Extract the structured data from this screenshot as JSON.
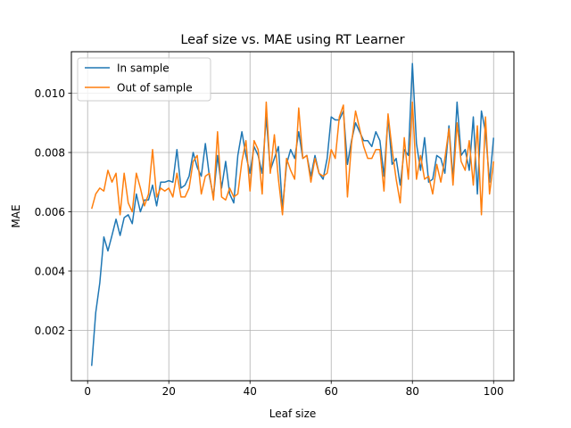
{
  "chart_data": {
    "type": "line",
    "title": "Leaf size vs. MAE using RT Learner",
    "xlabel": "Leaf size",
    "ylabel": "MAE",
    "xlim": [
      -4.0,
      105.0
    ],
    "ylim": [
      0.0003,
      0.0114
    ],
    "xticks": [
      0,
      20,
      40,
      60,
      80,
      100
    ],
    "xtick_labels": [
      "0",
      "20",
      "40",
      "60",
      "80",
      "100"
    ],
    "yticks": [
      0.002,
      0.004,
      0.006,
      0.008,
      0.01
    ],
    "ytick_labels": [
      "0.002",
      "0.004",
      "0.006",
      "0.008",
      "0.010"
    ],
    "grid": true,
    "legend_position": "top-left",
    "x": [
      1,
      2,
      3,
      4,
      5,
      6,
      7,
      8,
      9,
      10,
      11,
      12,
      13,
      14,
      15,
      16,
      17,
      18,
      19,
      20,
      21,
      22,
      23,
      24,
      25,
      26,
      27,
      28,
      29,
      30,
      31,
      32,
      33,
      34,
      35,
      36,
      37,
      38,
      39,
      40,
      41,
      42,
      43,
      44,
      45,
      46,
      47,
      48,
      49,
      50,
      51,
      52,
      53,
      54,
      55,
      56,
      57,
      58,
      59,
      60,
      61,
      62,
      63,
      64,
      65,
      66,
      67,
      68,
      69,
      70,
      71,
      72,
      73,
      74,
      75,
      76,
      77,
      78,
      79,
      80,
      81,
      82,
      83,
      84,
      85,
      86,
      87,
      88,
      89,
      90,
      91,
      92,
      93,
      94,
      95,
      96,
      97,
      98,
      99,
      100
    ],
    "series": [
      {
        "name": "In sample",
        "color": "#1f77b4",
        "values": [
          0.0008,
          0.0026,
          0.0036,
          0.00515,
          0.00468,
          0.0052,
          0.00575,
          0.0052,
          0.0058,
          0.0059,
          0.0056,
          0.0066,
          0.006,
          0.0064,
          0.0064,
          0.0069,
          0.0062,
          0.007,
          0.007,
          0.00705,
          0.007,
          0.0081,
          0.0068,
          0.0069,
          0.0072,
          0.008,
          0.0075,
          0.0072,
          0.0083,
          0.0072,
          0.0065,
          0.0079,
          0.0068,
          0.0077,
          0.0066,
          0.0063,
          0.0079,
          0.0087,
          0.0079,
          0.0073,
          0.0082,
          0.0079,
          0.0073,
          0.0092,
          0.0074,
          0.0078,
          0.0082,
          0.0061,
          0.0076,
          0.0081,
          0.0078,
          0.0087,
          0.0078,
          0.0079,
          0.0072,
          0.0079,
          0.0073,
          0.0071,
          0.0078,
          0.0092,
          0.0091,
          0.0091,
          0.0094,
          0.0076,
          0.0084,
          0.009,
          0.0087,
          0.0084,
          0.0084,
          0.0082,
          0.0087,
          0.0084,
          0.0072,
          0.0092,
          0.0076,
          0.0078,
          0.0069,
          0.0081,
          0.0079,
          0.011,
          0.0083,
          0.0074,
          0.0085,
          0.007,
          0.0071,
          0.0079,
          0.0078,
          0.0073,
          0.0089,
          0.0071,
          0.0097,
          0.0079,
          0.0081,
          0.0074,
          0.0092,
          0.0066,
          0.0094,
          0.0087,
          0.007,
          0.0085
        ]
      },
      {
        "name": "Out of sample",
        "color": "#ff7f0e",
        "values": [
          0.0061,
          0.0066,
          0.0068,
          0.0067,
          0.0074,
          0.007,
          0.0073,
          0.0059,
          0.0073,
          0.0063,
          0.006,
          0.0073,
          0.0068,
          0.0062,
          0.0066,
          0.0081,
          0.0065,
          0.0068,
          0.0067,
          0.0068,
          0.0065,
          0.0073,
          0.0065,
          0.0065,
          0.0068,
          0.0077,
          0.0079,
          0.0066,
          0.0072,
          0.0073,
          0.0064,
          0.0087,
          0.0065,
          0.0064,
          0.0068,
          0.0065,
          0.0066,
          0.0077,
          0.0084,
          0.0067,
          0.0084,
          0.0081,
          0.0066,
          0.0097,
          0.0073,
          0.0086,
          0.0071,
          0.0059,
          0.0078,
          0.0074,
          0.0071,
          0.0095,
          0.0078,
          0.0079,
          0.007,
          0.0078,
          0.0073,
          0.0072,
          0.0073,
          0.0081,
          0.0078,
          0.0092,
          0.0096,
          0.0065,
          0.0083,
          0.0094,
          0.0088,
          0.0082,
          0.0078,
          0.0078,
          0.0081,
          0.0081,
          0.0067,
          0.0093,
          0.0081,
          0.0071,
          0.0063,
          0.0085,
          0.0071,
          0.0097,
          0.0071,
          0.0079,
          0.0071,
          0.0072,
          0.0066,
          0.0076,
          0.007,
          0.0078,
          0.0088,
          0.0069,
          0.009,
          0.0077,
          0.0074,
          0.0084,
          0.0069,
          0.0089,
          0.0059,
          0.0092,
          0.0066,
          0.0077
        ]
      }
    ]
  }
}
